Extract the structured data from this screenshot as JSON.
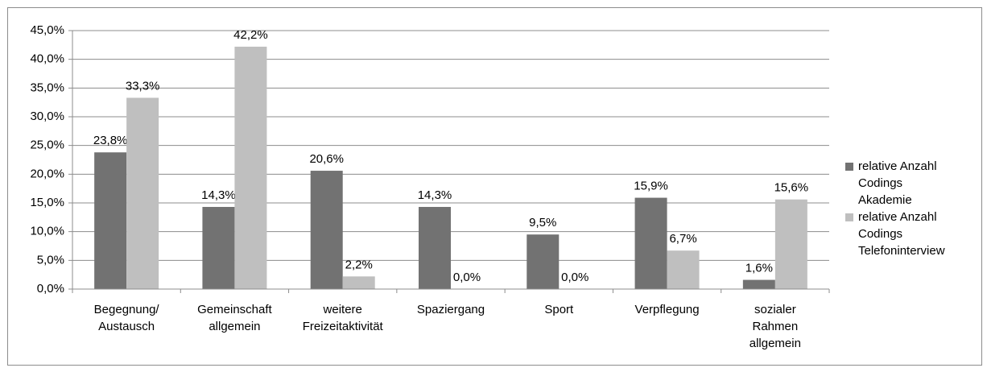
{
  "chart_data": {
    "type": "bar",
    "categories": [
      [
        "Begegnung/",
        "Austausch"
      ],
      [
        "Gemeinschaft",
        "allgemein"
      ],
      [
        "weitere",
        "Freizeitaktivität"
      ],
      [
        "Spaziergang"
      ],
      [
        "Sport"
      ],
      [
        "Verpflegung"
      ],
      [
        "sozialer",
        "Rahmen",
        "allgemein"
      ]
    ],
    "series": [
      {
        "name": "relative Anzahl Codings Akademie",
        "color": "#727272",
        "values": [
          23.8,
          14.3,
          20.6,
          14.3,
          9.5,
          15.9,
          1.6
        ],
        "value_labels": [
          "23,8%",
          "14,3%",
          "20,6%",
          "14,3%",
          "9,5%",
          "15,9%",
          "1,6%"
        ]
      },
      {
        "name": "relative Anzahl Codings Telefoninterview",
        "color": "#bfbfbf",
        "values": [
          33.3,
          42.2,
          2.2,
          0.0,
          0.0,
          6.7,
          15.6
        ],
        "value_labels": [
          "33,3%",
          "42,2%",
          "2,2%",
          "0,0%",
          "0,0%",
          "6,7%",
          "15,6%"
        ]
      }
    ],
    "ylim": [
      0,
      45
    ],
    "yticks": [
      {
        "value": 0,
        "label": "0,0%"
      },
      {
        "value": 5,
        "label": "5,0%"
      },
      {
        "value": 10,
        "label": "10,0%"
      },
      {
        "value": 15,
        "label": "15,0%"
      },
      {
        "value": 20,
        "label": "20,0%"
      },
      {
        "value": 25,
        "label": "25,0%"
      },
      {
        "value": 30,
        "label": "30,0%"
      },
      {
        "value": 35,
        "label": "35,0%"
      },
      {
        "value": 40,
        "label": "40,0%"
      },
      {
        "value": 45,
        "label": "45,0%"
      }
    ],
    "grid": true,
    "legend": "right"
  }
}
